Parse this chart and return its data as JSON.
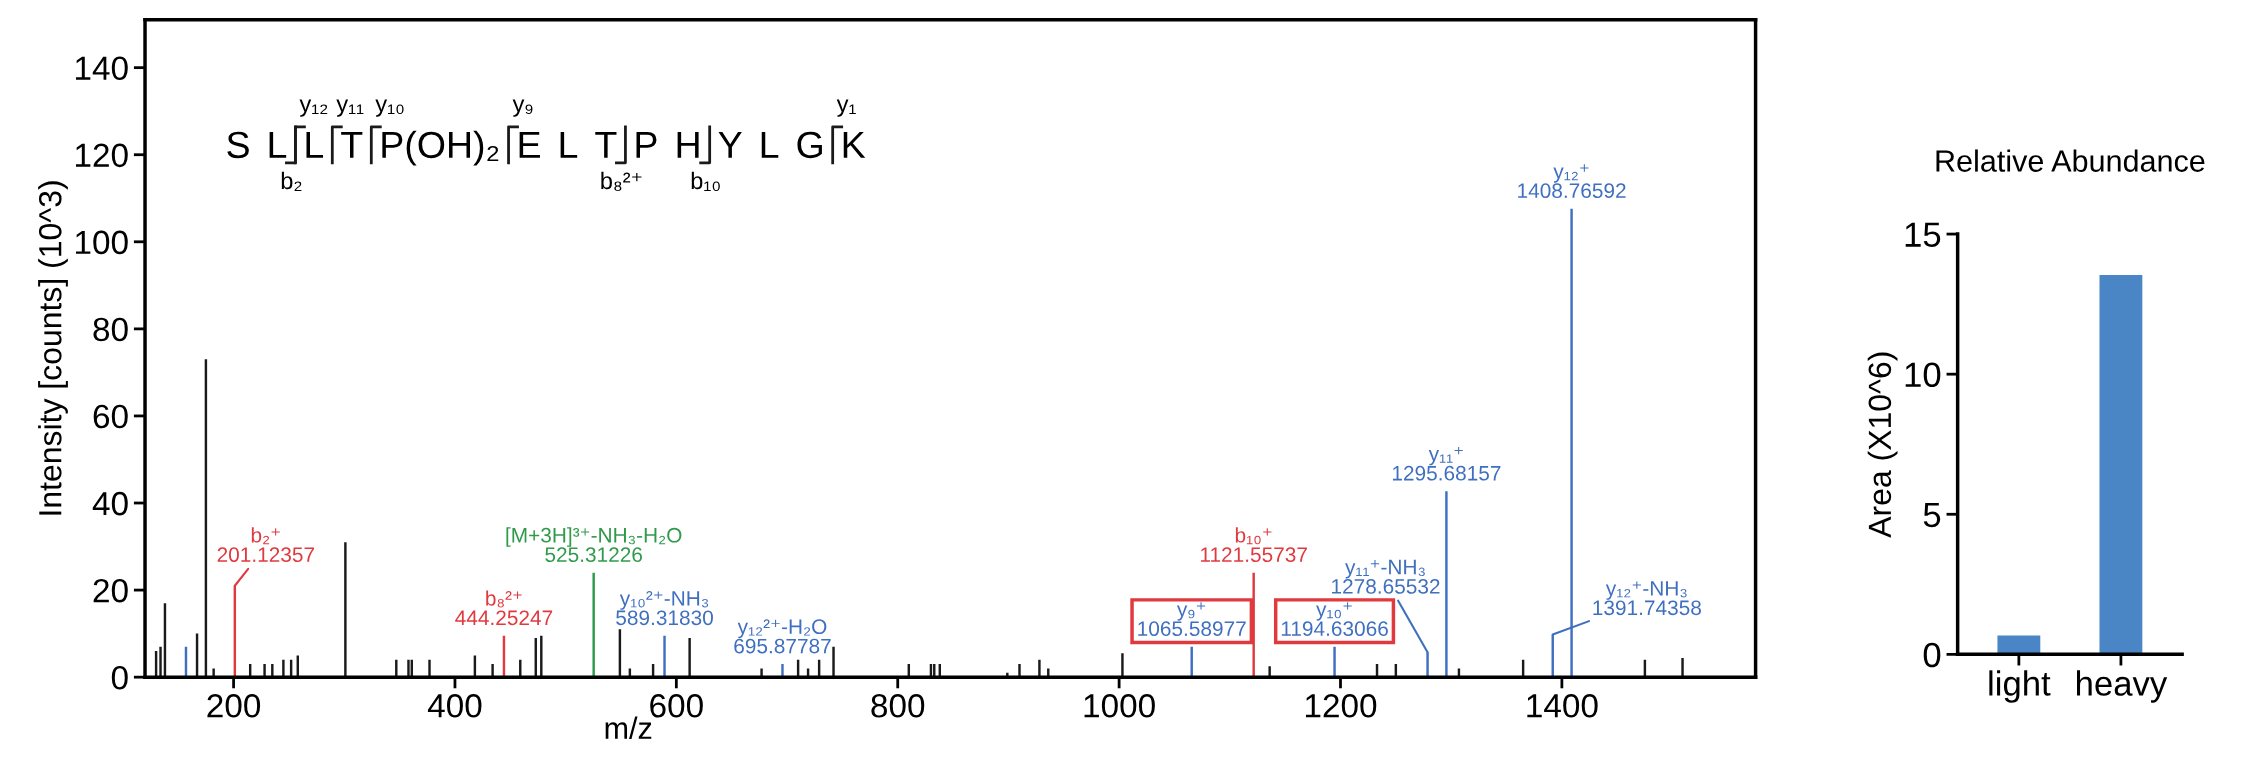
{
  "chart_data": [
    {
      "type": "bar",
      "xlabel": "m/z",
      "ylabel": "Intensity [counts] (10^3)",
      "xlim": [
        120,
        1575
      ],
      "ylim": [
        0,
        151
      ],
      "xticks": [
        200,
        400,
        600,
        800,
        1000,
        1200,
        1400
      ],
      "yticks": [
        0,
        20,
        40,
        60,
        80,
        100,
        120,
        140
      ],
      "series": [
        {
          "color": "#1a1a1a",
          "x": [
            130,
            134,
            138,
            167,
            175,
            182,
            215,
            228,
            235,
            245,
            252,
            258,
            301,
            347,
            358,
            361,
            377,
            418,
            434,
            459,
            473,
            478,
            549,
            558,
            579,
            612,
            677,
            710,
            719,
            729,
            742,
            810,
            830,
            833,
            838,
            899,
            910,
            928,
            936,
            1003,
            1136,
            1233,
            1250,
            1307,
            1365,
            1475,
            1509
          ],
          "values": [
            6,
            7,
            17,
            10,
            73,
            2,
            3,
            3,
            3,
            4,
            4,
            5,
            31,
            4,
            4,
            4,
            4,
            5,
            3,
            4,
            9,
            9.5,
            11,
            2,
            3,
            9,
            2,
            4,
            2,
            4,
            7,
            3,
            3,
            3,
            3,
            1,
            3,
            4,
            2,
            5.5,
            2.5,
            3,
            3,
            2,
            4,
            4,
            4.4
          ]
        },
        {
          "color": "#e0393e",
          "x": [
            201.12357,
            444.25247,
            1121.55737
          ],
          "values": [
            21,
            9.5,
            24
          ]
        },
        {
          "color": "#3f6fbf",
          "x": [
            157,
            589.3183,
            695.87787,
            1065.58977,
            1194.63066,
            1278.65532,
            1295.68157,
            1391.74358,
            1408.76592
          ],
          "values": [
            7,
            9.5,
            3,
            7,
            7,
            5.7,
            42.7,
            9.8,
            107.6
          ]
        },
        {
          "color": "#2e9a4a",
          "x": [
            525.31226
          ],
          "values": [
            24
          ]
        }
      ],
      "annotations": [
        {
          "text": "b₂⁺\n201.12357",
          "x": 201.12357,
          "y": 21
        },
        {
          "text": "b₈²⁺\n444.25247",
          "x": 444.25247,
          "y": 9.5
        },
        {
          "text": "[M+3H]³⁺-NH₃-H₂O\n525.31226",
          "x": 525.31226,
          "y": 24
        },
        {
          "text": "y₁₀²⁺-NH₃\n589.31830",
          "x": 589.3183,
          "y": 9.5
        },
        {
          "text": "y₁₂²⁺-H₂O\n695.87787",
          "x": 695.87787,
          "y": 3
        },
        {
          "text": "y₉⁺\n1065.58977",
          "x": 1065.58977,
          "y": 7
        },
        {
          "text": "b₁₀⁺\n1121.55737",
          "x": 1121.55737,
          "y": 24
        },
        {
          "text": "y₁₀⁺\n1194.63066",
          "x": 1194.63066,
          "y": 7
        },
        {
          "text": "y₁₁⁺-NH₃\n1278.65532",
          "x": 1278.65532,
          "y": 5.7
        },
        {
          "text": "y₁₁⁺\n1295.68157",
          "x": 1295.68157,
          "y": 42.7
        },
        {
          "text": "y₁₂⁺-NH₃\n1391.74358",
          "x": 1391.74358,
          "y": 9.8
        },
        {
          "text": "y₁₂⁺\n1408.76592",
          "x": 1408.76592,
          "y": 107.6
        },
        "S",
        "L",
        "b₂",
        "y₁₂",
        "L",
        "y₁₁",
        "T",
        "y₁₀",
        "P(OH)₂",
        "y₉",
        "E",
        "L",
        "T",
        "b₈²⁺",
        "P",
        "H",
        "b₁₀",
        "Y",
        "L",
        "G",
        "y₁",
        "K"
      ]
    },
    {
      "type": "bar",
      "title": "Relative Abundance",
      "ylabel": "Area (X10^6)",
      "categories": [
        "light",
        "heavy"
      ],
      "values": [
        0.67,
        13.54
      ],
      "color": "#4a86c5",
      "ylim": [
        0,
        15
      ],
      "yticks": [
        0,
        5,
        10,
        15
      ]
    }
  ]
}
